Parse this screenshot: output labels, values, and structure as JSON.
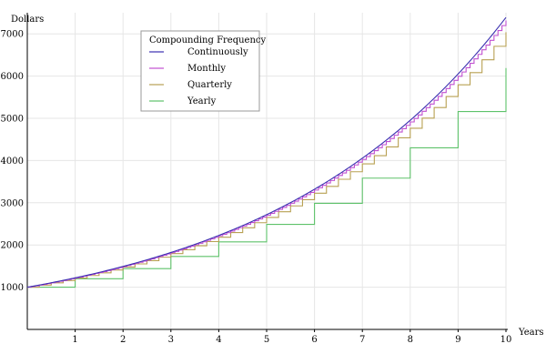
{
  "chart_data": {
    "type": "line",
    "title": "",
    "xlabel": "Years",
    "ylabel": "Dollars",
    "xlim": [
      0,
      10
    ],
    "ylim": [
      0,
      7500
    ],
    "x_ticks": [
      1,
      2,
      3,
      4,
      5,
      6,
      7,
      8,
      9,
      10
    ],
    "y_ticks": [
      1000,
      2000,
      3000,
      4000,
      5000,
      6000,
      7000
    ],
    "grid": true,
    "legend": {
      "title": "Compounding Frequency",
      "placement": "top-left"
    },
    "series": [
      {
        "name": "Continuously",
        "kind": "smooth",
        "color": "#3a2fb0",
        "points": [
          [
            0,
            1000
          ],
          [
            1,
            1221
          ],
          [
            2,
            1492
          ],
          [
            3,
            1822
          ],
          [
            4,
            2226
          ],
          [
            5,
            2718
          ],
          [
            6,
            3320
          ],
          [
            7,
            4055
          ],
          [
            8,
            4953
          ],
          [
            9,
            6050
          ],
          [
            10,
            7389
          ]
        ]
      },
      {
        "name": "Monthly",
        "kind": "step",
        "steps_per_year": 12,
        "color": "#c04fd0",
        "points": [
          [
            0,
            1000
          ],
          [
            1,
            1220
          ],
          [
            2,
            1489
          ],
          [
            3,
            1817
          ],
          [
            4,
            2217
          ],
          [
            5,
            2705
          ],
          [
            6,
            3300
          ],
          [
            7,
            4027
          ],
          [
            8,
            4914
          ],
          [
            9,
            5996
          ],
          [
            10,
            7316
          ]
        ]
      },
      {
        "name": "Quarterly",
        "kind": "step",
        "steps_per_year": 4,
        "color": "#b8a052",
        "points": [
          [
            0,
            1000
          ],
          [
            1,
            1216
          ],
          [
            2,
            1478
          ],
          [
            3,
            1796
          ],
          [
            4,
            2184
          ],
          [
            5,
            2653
          ],
          [
            6,
            3226
          ],
          [
            7,
            3920
          ],
          [
            8,
            4765
          ],
          [
            9,
            5793
          ],
          [
            10,
            7040
          ]
        ]
      },
      {
        "name": "Yearly",
        "kind": "step",
        "steps_per_year": 1,
        "color": "#5ec26a",
        "points": [
          [
            0,
            1000
          ],
          [
            1,
            1200
          ],
          [
            2,
            1440
          ],
          [
            3,
            1728
          ],
          [
            4,
            2074
          ],
          [
            5,
            2488
          ],
          [
            6,
            2986
          ],
          [
            7,
            3583
          ],
          [
            8,
            4300
          ],
          [
            9,
            5160
          ],
          [
            10,
            6192
          ]
        ]
      }
    ]
  }
}
